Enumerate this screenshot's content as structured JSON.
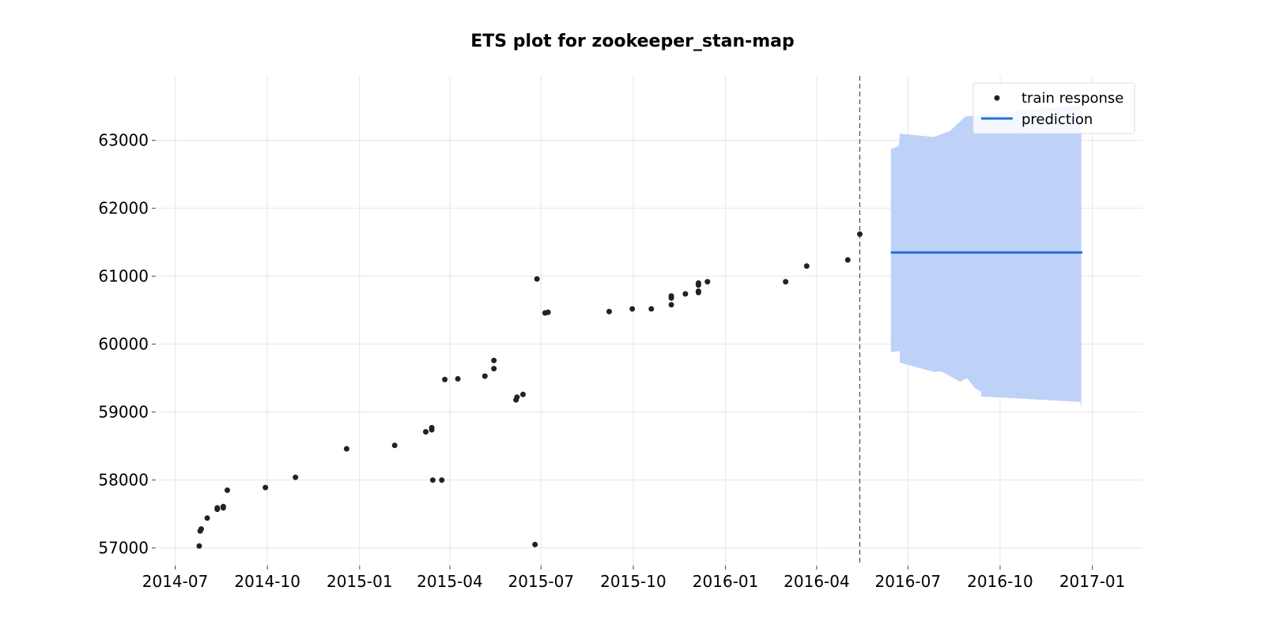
{
  "chart_data": {
    "type": "scatter",
    "title": "ETS plot for zookeeper_stan-map",
    "xlabel": "",
    "ylabel": "",
    "xlim": [
      "2014-06-14",
      "2017-02-20"
    ],
    "ylim": [
      56740,
      63950
    ],
    "x_ticks": [
      "2014-07",
      "2014-10",
      "2015-01",
      "2015-04",
      "2015-07",
      "2015-10",
      "2016-01",
      "2016-04",
      "2016-07",
      "2016-10",
      "2017-01"
    ],
    "x_tick_dates": [
      "2014-07-01",
      "2014-10-01",
      "2015-01-01",
      "2015-04-01",
      "2015-07-01",
      "2015-10-01",
      "2016-01-01",
      "2016-04-01",
      "2016-07-01",
      "2016-10-01",
      "2017-01-01"
    ],
    "y_ticks": [
      57000,
      58000,
      59000,
      60000,
      61000,
      62000,
      63000
    ],
    "grid": true,
    "legend_position": "top-right",
    "colors": {
      "train": "#222222",
      "prediction": "#2a6fdb",
      "band": "#bed2f8",
      "cutoff": "#555555"
    },
    "series": [
      {
        "name": "train response",
        "kind": "scatter",
        "points": [
          [
            "2014-07-25",
            57030
          ],
          [
            "2014-07-26",
            57250
          ],
          [
            "2014-07-27",
            57280
          ],
          [
            "2014-08-02",
            57440
          ],
          [
            "2014-08-12",
            57570
          ],
          [
            "2014-08-12",
            57590
          ],
          [
            "2014-08-18",
            57590
          ],
          [
            "2014-08-18",
            57610
          ],
          [
            "2014-08-22",
            57850
          ],
          [
            "2014-09-29",
            57890
          ],
          [
            "2014-10-29",
            58040
          ],
          [
            "2014-12-19",
            58460
          ],
          [
            "2015-02-05",
            58510
          ],
          [
            "2015-03-08",
            58710
          ],
          [
            "2015-03-14",
            58740
          ],
          [
            "2015-03-14",
            58770
          ],
          [
            "2015-03-15",
            58000
          ],
          [
            "2015-03-24",
            58000
          ],
          [
            "2015-03-27",
            59480
          ],
          [
            "2015-04-09",
            59490
          ],
          [
            "2015-05-06",
            59530
          ],
          [
            "2015-05-15",
            59640
          ],
          [
            "2015-05-15",
            59760
          ],
          [
            "2015-06-06",
            59180
          ],
          [
            "2015-06-07",
            59220
          ],
          [
            "2015-06-13",
            59260
          ],
          [
            "2015-06-25",
            57050
          ],
          [
            "2015-06-27",
            60960
          ],
          [
            "2015-07-05",
            60460
          ],
          [
            "2015-07-08",
            60470
          ],
          [
            "2015-09-07",
            60480
          ],
          [
            "2015-09-30",
            60520
          ],
          [
            "2015-10-19",
            60520
          ],
          [
            "2015-11-08",
            60580
          ],
          [
            "2015-11-08",
            60680
          ],
          [
            "2015-11-08",
            60710
          ],
          [
            "2015-11-22",
            60740
          ],
          [
            "2015-12-05",
            60760
          ],
          [
            "2015-12-05",
            60780
          ],
          [
            "2015-12-05",
            60870
          ],
          [
            "2015-12-05",
            60900
          ],
          [
            "2015-12-14",
            60920
          ],
          [
            "2016-03-01",
            60920
          ],
          [
            "2016-03-22",
            61150
          ],
          [
            "2016-05-02",
            61240
          ],
          [
            "2016-05-14",
            61620
          ]
        ]
      },
      {
        "name": "prediction",
        "kind": "line",
        "points": [
          [
            "2016-06-14",
            61350
          ],
          [
            "2016-12-22",
            61350
          ]
        ]
      }
    ],
    "interval": {
      "upper": [
        [
          "2016-06-14",
          62870
        ],
        [
          "2016-06-22",
          62920
        ],
        [
          "2016-06-23",
          63100
        ],
        [
          "2016-07-27",
          63050
        ],
        [
          "2016-08-12",
          63140
        ],
        [
          "2016-08-27",
          63350
        ],
        [
          "2016-12-20",
          63520
        ],
        [
          "2016-12-21",
          63520
        ]
      ],
      "lower": [
        [
          "2016-12-21",
          59050
        ],
        [
          "2016-12-20",
          59150
        ],
        [
          "2016-09-12",
          59230
        ],
        [
          "2016-09-12",
          59300
        ],
        [
          "2016-09-06",
          59350
        ],
        [
          "2016-08-29",
          59500
        ],
        [
          "2016-08-22",
          59450
        ],
        [
          "2016-08-13",
          59520
        ],
        [
          "2016-08-03",
          59600
        ],
        [
          "2016-07-27",
          59590
        ],
        [
          "2016-06-23",
          59730
        ],
        [
          "2016-06-23",
          59900
        ],
        [
          "2016-06-14",
          59880
        ]
      ]
    },
    "cutoff_date": "2016-05-14"
  },
  "legend": {
    "train_label": "train response",
    "prediction_label": "prediction"
  }
}
